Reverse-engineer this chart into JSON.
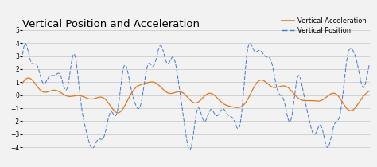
{
  "title": "Vertical Position and Acceleration",
  "legend_accel": "Vertical Acceleration",
  "legend_pos": "Vertical Position",
  "accel_color": "#E07820",
  "pos_color": "#4477CC",
  "ylim": [
    -5,
    5
  ],
  "yticks": [
    -4,
    -3,
    -2,
    -1,
    0,
    1,
    2,
    3,
    4,
    5
  ],
  "bg_color": "#f2f2f2",
  "grid_color": "#cccccc",
  "figsize": [
    4.74,
    2.1
  ],
  "dpi": 100
}
